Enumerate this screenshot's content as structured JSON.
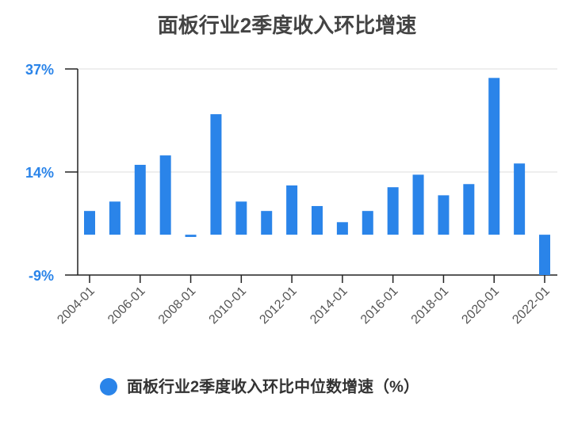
{
  "chart_data": {
    "type": "bar",
    "title": "面板行业2季度收入环比增速",
    "categories": [
      "2004-01",
      null,
      "2006-01",
      null,
      "2008-01",
      null,
      "2010-01",
      null,
      "2012-01",
      null,
      "2014-01",
      null,
      "2016-01",
      null,
      "2018-01",
      null,
      "2020-01",
      null,
      "2022-01"
    ],
    "series": [
      {
        "name": "面板行业2季度收入环比中位数增速（%）",
        "color": "#2a84e9",
        "values": [
          5.3,
          7.4,
          15.6,
          17.7,
          -0.5,
          26.9,
          7.4,
          5.3,
          11.0,
          6.4,
          2.8,
          5.3,
          10.6,
          13.4,
          8.8,
          11.3,
          35.0,
          15.9,
          -9.0
        ]
      }
    ],
    "ylim": [
      -9,
      37
    ],
    "yticks": [
      {
        "value": -9,
        "label": "-9%"
      },
      {
        "value": 14,
        "label": "14%"
      },
      {
        "value": 37,
        "label": "37%"
      }
    ],
    "grid": true
  }
}
